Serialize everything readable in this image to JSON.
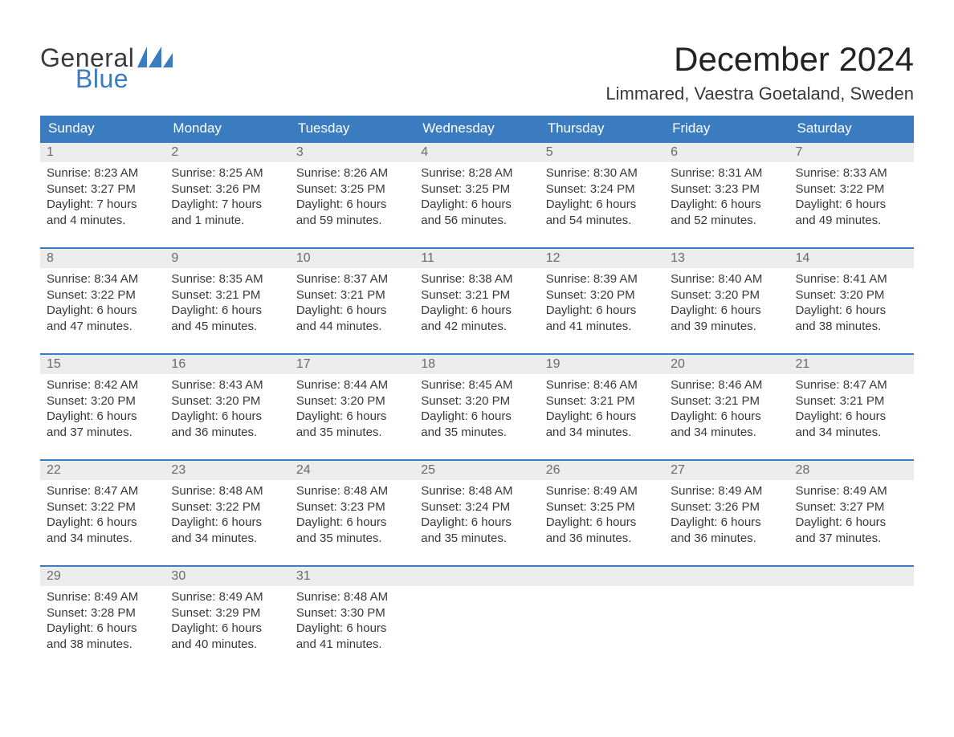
{
  "logo": {
    "line1": "General",
    "line2": "Blue",
    "text_color": "#3a3a3a",
    "accent_color": "#3b7bbf"
  },
  "title": "December 2024",
  "location": "Limmared, Vaestra Goetaland, Sweden",
  "calendar": {
    "columns": [
      "Sunday",
      "Monday",
      "Tuesday",
      "Wednesday",
      "Thursday",
      "Friday",
      "Saturday"
    ],
    "header_bg": "#3b7bbf",
    "header_text_color": "#ffffff",
    "daynum_bg": "#ececec",
    "row_border_color": "#3b7bbf",
    "body_text_color": "#383838",
    "weeks": [
      [
        {
          "day": "1",
          "sunrise": "Sunrise: 8:23 AM",
          "sunset": "Sunset: 3:27 PM",
          "daylight1": "Daylight: 7 hours",
          "daylight2": "and 4 minutes."
        },
        {
          "day": "2",
          "sunrise": "Sunrise: 8:25 AM",
          "sunset": "Sunset: 3:26 PM",
          "daylight1": "Daylight: 7 hours",
          "daylight2": "and 1 minute."
        },
        {
          "day": "3",
          "sunrise": "Sunrise: 8:26 AM",
          "sunset": "Sunset: 3:25 PM",
          "daylight1": "Daylight: 6 hours",
          "daylight2": "and 59 minutes."
        },
        {
          "day": "4",
          "sunrise": "Sunrise: 8:28 AM",
          "sunset": "Sunset: 3:25 PM",
          "daylight1": "Daylight: 6 hours",
          "daylight2": "and 56 minutes."
        },
        {
          "day": "5",
          "sunrise": "Sunrise: 8:30 AM",
          "sunset": "Sunset: 3:24 PM",
          "daylight1": "Daylight: 6 hours",
          "daylight2": "and 54 minutes."
        },
        {
          "day": "6",
          "sunrise": "Sunrise: 8:31 AM",
          "sunset": "Sunset: 3:23 PM",
          "daylight1": "Daylight: 6 hours",
          "daylight2": "and 52 minutes."
        },
        {
          "day": "7",
          "sunrise": "Sunrise: 8:33 AM",
          "sunset": "Sunset: 3:22 PM",
          "daylight1": "Daylight: 6 hours",
          "daylight2": "and 49 minutes."
        }
      ],
      [
        {
          "day": "8",
          "sunrise": "Sunrise: 8:34 AM",
          "sunset": "Sunset: 3:22 PM",
          "daylight1": "Daylight: 6 hours",
          "daylight2": "and 47 minutes."
        },
        {
          "day": "9",
          "sunrise": "Sunrise: 8:35 AM",
          "sunset": "Sunset: 3:21 PM",
          "daylight1": "Daylight: 6 hours",
          "daylight2": "and 45 minutes."
        },
        {
          "day": "10",
          "sunrise": "Sunrise: 8:37 AM",
          "sunset": "Sunset: 3:21 PM",
          "daylight1": "Daylight: 6 hours",
          "daylight2": "and 44 minutes."
        },
        {
          "day": "11",
          "sunrise": "Sunrise: 8:38 AM",
          "sunset": "Sunset: 3:21 PM",
          "daylight1": "Daylight: 6 hours",
          "daylight2": "and 42 minutes."
        },
        {
          "day": "12",
          "sunrise": "Sunrise: 8:39 AM",
          "sunset": "Sunset: 3:20 PM",
          "daylight1": "Daylight: 6 hours",
          "daylight2": "and 41 minutes."
        },
        {
          "day": "13",
          "sunrise": "Sunrise: 8:40 AM",
          "sunset": "Sunset: 3:20 PM",
          "daylight1": "Daylight: 6 hours",
          "daylight2": "and 39 minutes."
        },
        {
          "day": "14",
          "sunrise": "Sunrise: 8:41 AM",
          "sunset": "Sunset: 3:20 PM",
          "daylight1": "Daylight: 6 hours",
          "daylight2": "and 38 minutes."
        }
      ],
      [
        {
          "day": "15",
          "sunrise": "Sunrise: 8:42 AM",
          "sunset": "Sunset: 3:20 PM",
          "daylight1": "Daylight: 6 hours",
          "daylight2": "and 37 minutes."
        },
        {
          "day": "16",
          "sunrise": "Sunrise: 8:43 AM",
          "sunset": "Sunset: 3:20 PM",
          "daylight1": "Daylight: 6 hours",
          "daylight2": "and 36 minutes."
        },
        {
          "day": "17",
          "sunrise": "Sunrise: 8:44 AM",
          "sunset": "Sunset: 3:20 PM",
          "daylight1": "Daylight: 6 hours",
          "daylight2": "and 35 minutes."
        },
        {
          "day": "18",
          "sunrise": "Sunrise: 8:45 AM",
          "sunset": "Sunset: 3:20 PM",
          "daylight1": "Daylight: 6 hours",
          "daylight2": "and 35 minutes."
        },
        {
          "day": "19",
          "sunrise": "Sunrise: 8:46 AM",
          "sunset": "Sunset: 3:21 PM",
          "daylight1": "Daylight: 6 hours",
          "daylight2": "and 34 minutes."
        },
        {
          "day": "20",
          "sunrise": "Sunrise: 8:46 AM",
          "sunset": "Sunset: 3:21 PM",
          "daylight1": "Daylight: 6 hours",
          "daylight2": "and 34 minutes."
        },
        {
          "day": "21",
          "sunrise": "Sunrise: 8:47 AM",
          "sunset": "Sunset: 3:21 PM",
          "daylight1": "Daylight: 6 hours",
          "daylight2": "and 34 minutes."
        }
      ],
      [
        {
          "day": "22",
          "sunrise": "Sunrise: 8:47 AM",
          "sunset": "Sunset: 3:22 PM",
          "daylight1": "Daylight: 6 hours",
          "daylight2": "and 34 minutes."
        },
        {
          "day": "23",
          "sunrise": "Sunrise: 8:48 AM",
          "sunset": "Sunset: 3:22 PM",
          "daylight1": "Daylight: 6 hours",
          "daylight2": "and 34 minutes."
        },
        {
          "day": "24",
          "sunrise": "Sunrise: 8:48 AM",
          "sunset": "Sunset: 3:23 PM",
          "daylight1": "Daylight: 6 hours",
          "daylight2": "and 35 minutes."
        },
        {
          "day": "25",
          "sunrise": "Sunrise: 8:48 AM",
          "sunset": "Sunset: 3:24 PM",
          "daylight1": "Daylight: 6 hours",
          "daylight2": "and 35 minutes."
        },
        {
          "day": "26",
          "sunrise": "Sunrise: 8:49 AM",
          "sunset": "Sunset: 3:25 PM",
          "daylight1": "Daylight: 6 hours",
          "daylight2": "and 36 minutes."
        },
        {
          "day": "27",
          "sunrise": "Sunrise: 8:49 AM",
          "sunset": "Sunset: 3:26 PM",
          "daylight1": "Daylight: 6 hours",
          "daylight2": "and 36 minutes."
        },
        {
          "day": "28",
          "sunrise": "Sunrise: 8:49 AM",
          "sunset": "Sunset: 3:27 PM",
          "daylight1": "Daylight: 6 hours",
          "daylight2": "and 37 minutes."
        }
      ],
      [
        {
          "day": "29",
          "sunrise": "Sunrise: 8:49 AM",
          "sunset": "Sunset: 3:28 PM",
          "daylight1": "Daylight: 6 hours",
          "daylight2": "and 38 minutes."
        },
        {
          "day": "30",
          "sunrise": "Sunrise: 8:49 AM",
          "sunset": "Sunset: 3:29 PM",
          "daylight1": "Daylight: 6 hours",
          "daylight2": "and 40 minutes."
        },
        {
          "day": "31",
          "sunrise": "Sunrise: 8:48 AM",
          "sunset": "Sunset: 3:30 PM",
          "daylight1": "Daylight: 6 hours",
          "daylight2": "and 41 minutes."
        },
        {
          "empty": true
        },
        {
          "empty": true
        },
        {
          "empty": true
        },
        {
          "empty": true
        }
      ]
    ]
  }
}
